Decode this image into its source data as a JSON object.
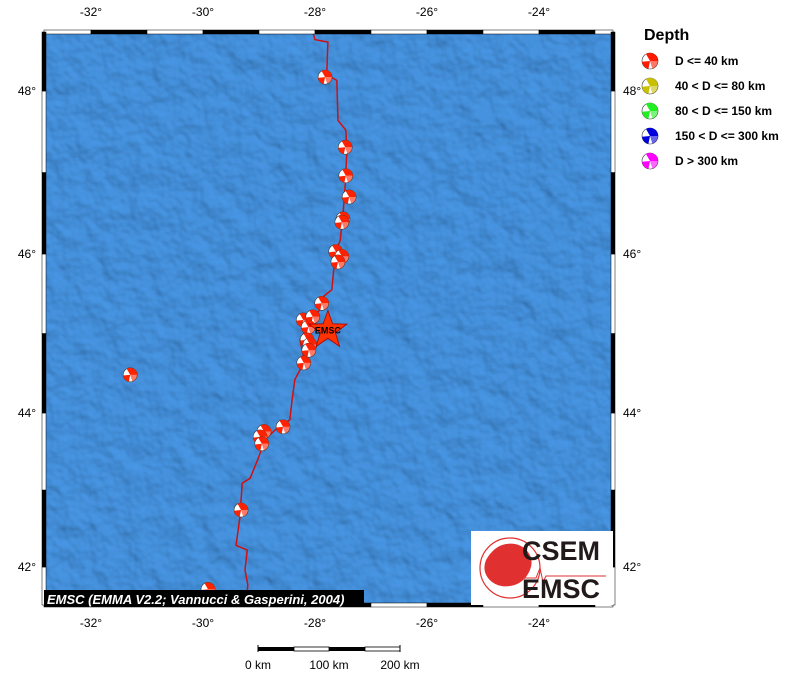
{
  "map": {
    "lon_range": [
      -32.84,
      -22.68
    ],
    "lat_range": [
      41.5,
      48.73
    ],
    "lon_ticks": [
      -32,
      -30,
      -28,
      -26,
      -24
    ],
    "lat_ticks": [
      48,
      46,
      44,
      42
    ],
    "lon_labels": [
      "-32°",
      "-30°",
      "-28°",
      "-26°",
      "-24°"
    ],
    "lat_labels": [
      "48°",
      "46°",
      "44°",
      "42°"
    ],
    "ocean_color": "#3d8fe0",
    "ridge_color": "#d01010",
    "ridge": [
      [
        -28.04,
        48.72
      ],
      [
        -28.0,
        48.63
      ],
      [
        -27.77,
        48.6
      ],
      [
        -27.79,
        48.2
      ],
      [
        -27.61,
        48.13
      ],
      [
        -27.59,
        47.64
      ],
      [
        -27.45,
        47.52
      ],
      [
        -27.43,
        47.28
      ],
      [
        -27.46,
        46.85
      ],
      [
        -27.5,
        46.48
      ],
      [
        -27.55,
        46.17
      ],
      [
        -27.64,
        45.99
      ],
      [
        -27.7,
        45.55
      ],
      [
        -27.88,
        45.45
      ],
      [
        -27.91,
        45.3
      ],
      [
        -28.09,
        45.17
      ],
      [
        -28.16,
        45.05
      ],
      [
        -28.27,
        44.92
      ],
      [
        -28.21,
        44.73
      ],
      [
        -28.27,
        44.54
      ],
      [
        -28.36,
        44.42
      ],
      [
        -28.41,
        44.16
      ],
      [
        -28.45,
        43.91
      ],
      [
        -28.71,
        43.78
      ],
      [
        -28.89,
        43.66
      ],
      [
        -29.02,
        43.4
      ],
      [
        -29.16,
        43.15
      ],
      [
        -29.3,
        43.09
      ],
      [
        -29.34,
        42.65
      ],
      [
        -29.41,
        42.28
      ],
      [
        -29.21,
        42.22
      ],
      [
        -29.25,
        41.96
      ],
      [
        -29.2,
        41.77
      ],
      [
        -29.23,
        41.5
      ]
    ],
    "events": [
      [
        -27.82,
        48.17
      ],
      [
        -27.46,
        47.31
      ],
      [
        -27.45,
        46.96
      ],
      [
        -27.39,
        46.7
      ],
      [
        -27.5,
        46.43
      ],
      [
        -27.52,
        46.39
      ],
      [
        -27.63,
        46.03
      ],
      [
        -27.52,
        45.97
      ],
      [
        -27.59,
        45.9
      ],
      [
        -27.88,
        45.38
      ],
      [
        -28.21,
        45.17
      ],
      [
        -28.04,
        45.21
      ],
      [
        -28.12,
        45.08
      ],
      [
        -28.14,
        44.92
      ],
      [
        -28.09,
        44.86
      ],
      [
        -28.11,
        44.79
      ],
      [
        -28.2,
        44.63
      ],
      [
        -31.3,
        44.48
      ],
      [
        -28.57,
        43.82
      ],
      [
        -28.91,
        43.76
      ],
      [
        -28.98,
        43.69
      ],
      [
        -28.95,
        43.6
      ],
      [
        -29.32,
        42.74
      ],
      [
        -29.91,
        41.71
      ]
    ],
    "event_color": "#ff2200",
    "star": {
      "lon": -27.77,
      "lat": 45.04,
      "label": "EMSC",
      "color": "#ff3300"
    },
    "attribution": "EMSC (EMMA V2.2; Vannucci & Gasperini, 2004)",
    "logo": {
      "top": "CSEM",
      "bottom": "EMSC"
    }
  },
  "scale_bar": {
    "labels": [
      "0 km",
      "100 km",
      "200 km"
    ]
  },
  "legend": {
    "title": "Depth",
    "items": [
      {
        "label": "D <= 40 km",
        "color": "#ff1a00"
      },
      {
        "label": "40 < D <= 80 km",
        "color": "#c8c000"
      },
      {
        "label": "80 < D <= 150 km",
        "color": "#22ee22"
      },
      {
        "label": "150 < D <= 300 km",
        "color": "#0000dd"
      },
      {
        "label": "D > 300 km",
        "color": "#ff00ff"
      }
    ]
  }
}
